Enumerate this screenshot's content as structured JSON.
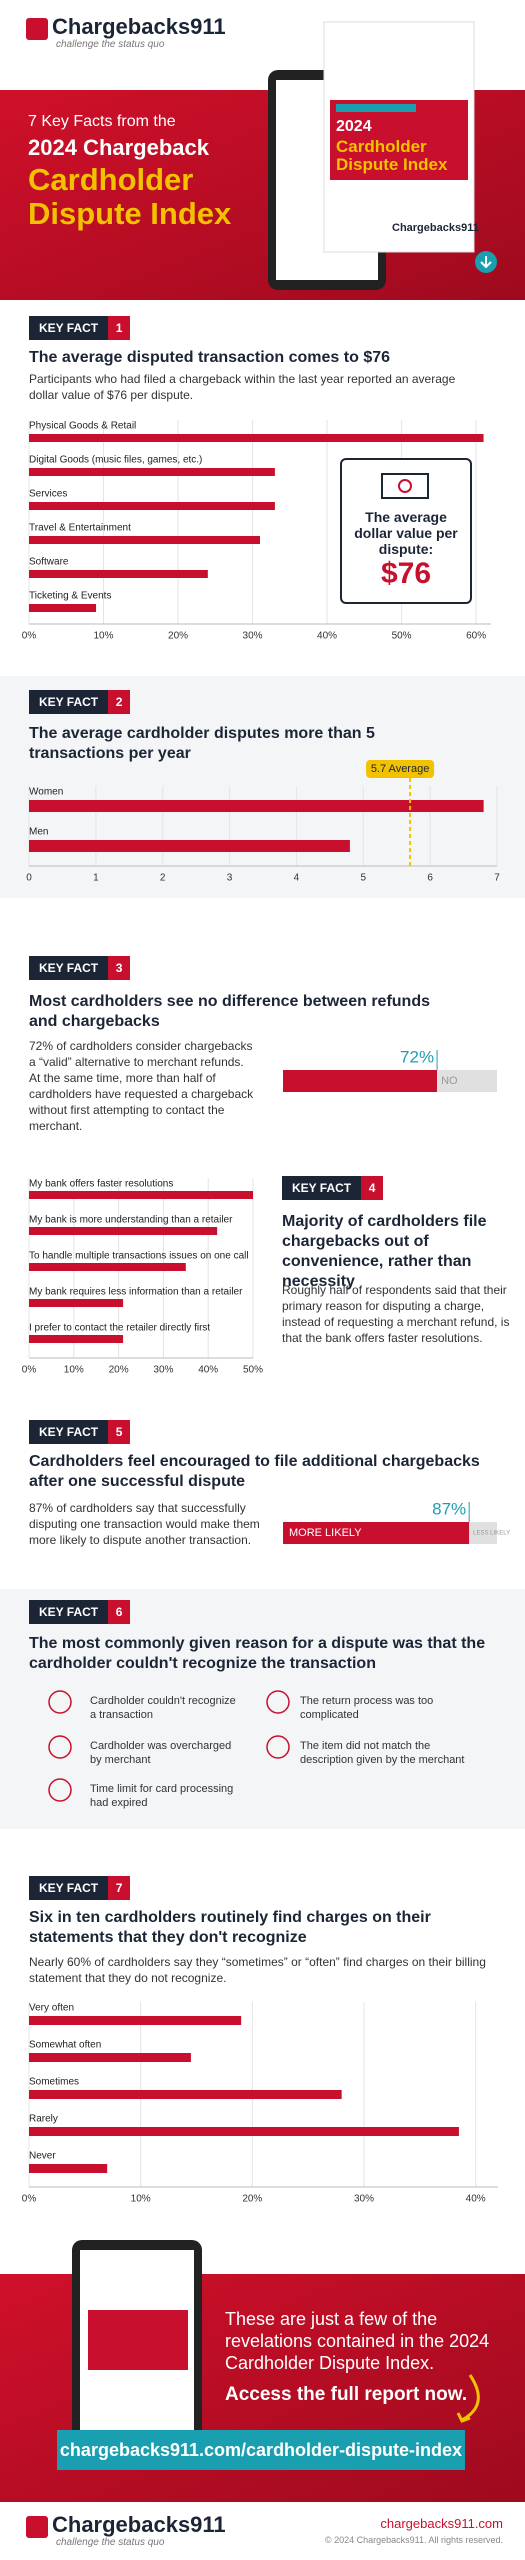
{
  "header": {
    "logo": "Chargebacks911",
    "tagline": "challenge the status quo"
  },
  "hero": {
    "line1": "7 Key Facts from the",
    "line2": "2024 Chargeback",
    "title": "Cardholder Dispute Index",
    "book_year": "2024",
    "book_title": "Cardholder Dispute Index"
  },
  "sections": [
    {
      "tag": "KEY FACT",
      "number": 1,
      "title": "The average disputed transaction comes to $76",
      "text": "Participants who had filed a chargeback within the last year reported an average dollar value of $76 per dispute."
    },
    {
      "tag": "KEY FACT",
      "number": 2,
      "title": "The average cardholder disputes more than 5 transactions per year"
    },
    {
      "tag": "KEY FACT",
      "number": 3,
      "title": "Most cardholders see no difference between refunds and chargebacks",
      "text": "72% of cardholders consider chargebacks a “valid” alternative to merchant refunds. At the same time, more than half of cardholders have requested a chargeback without first attempting to contact the merchant."
    },
    {
      "tag": "KEY FACT",
      "number": 4,
      "title": "Majority of cardholders file chargebacks out of convenience, rather than necessity",
      "text": "Roughly half of respondents said that their primary reason for disputing a charge, instead of requesting a merchant refund, is that the bank offers faster resolutions."
    },
    {
      "tag": "KEY FACT",
      "number": 5,
      "title": "Cardholders feel encouraged to file additional chargebacks after one successful dispute",
      "text": "87% of cardholders say that successfully disputing one transaction would make them more likely to dispute another transaction."
    },
    {
      "tag": "KEY FACT",
      "number": 6,
      "title": "The most commonly given reason for a dispute was that the cardholder couldn't recognize the transaction"
    },
    {
      "tag": "KEY FACT",
      "number": 7,
      "title": "Six in ten cardholders routinely find charges on their statements that they don't recognize",
      "text": "Nearly 60% of cardholders say they “sometimes” or “often” find charges on their billing statement that they do not recognize."
    }
  ],
  "card": {
    "label": "The average dollar value per dispute:",
    "amount": "$76"
  },
  "reasons": [
    "Cardholder couldn't recognize a transaction",
    "The return process was too complicated",
    "Cardholder was overcharged by merchant",
    "The item did not match the description given by the merchant",
    "Time limit for card processing had expired"
  ],
  "footer": {
    "text": "These are just a few of the revelations contained in the 2024 Cardholder Dispute Index.",
    "cta": "Access the full report now.",
    "url": "chargebacks911.com/cardholder-dispute-index",
    "site": "chargebacks911.com",
    "copyright": "© 2024 Chargebacks911. All rights reserved."
  },
  "chart_data": [
    {
      "type": "bar",
      "orientation": "horizontal",
      "color": "#c8102e",
      "grid": true,
      "categories": [
        "Physical Goods & Retail",
        "Digital Goods (music files, games, etc.)",
        "Services",
        "Travel & Entertainment",
        "Software",
        "Ticketing & Events"
      ],
      "values": [
        61,
        33,
        33,
        31,
        24,
        9
      ],
      "xlim": [
        0,
        62
      ],
      "xticks": [
        {
          "value": 0,
          "label": "0%"
        },
        {
          "value": 10,
          "label": "10%"
        },
        {
          "value": 20,
          "label": "20%"
        },
        {
          "value": 30,
          "label": "30%"
        },
        {
          "value": 40,
          "label": "40%"
        },
        {
          "value": 50,
          "label": "50%"
        },
        {
          "value": 60,
          "label": "60%"
        }
      ]
    },
    {
      "type": "bar",
      "orientation": "horizontal",
      "color": "#c8102e",
      "grid": true,
      "categories": [
        "Women",
        "Men"
      ],
      "values": [
        6.8,
        4.8
      ],
      "xlim": [
        0,
        7
      ],
      "xticks": [
        0,
        1,
        2,
        3,
        4,
        5,
        6,
        7
      ],
      "annotation": {
        "value": 5.7,
        "label": "5.7 Average"
      }
    },
    {
      "type": "progress",
      "color": "#c8102e",
      "value": 72,
      "value_label": "72%",
      "rest_label": "NO",
      "xlim": [
        0,
        100
      ]
    },
    {
      "type": "bar",
      "orientation": "horizontal",
      "color": "#c8102e",
      "grid": true,
      "categories": [
        "My bank offers faster resolutions",
        "My bank is more understanding than a retailer",
        "To handle multiple transactions issues on one call",
        "My bank requires less information than a retailer",
        "I prefer to contact the retailer directly first"
      ],
      "values": [
        50,
        42,
        35,
        21,
        21
      ],
      "xlim": [
        0,
        50
      ],
      "xticks": [
        {
          "value": 0,
          "label": "0%"
        },
        {
          "value": 10,
          "label": "10%"
        },
        {
          "value": 20,
          "label": "20%"
        },
        {
          "value": 30,
          "label": "30%"
        },
        {
          "value": 40,
          "label": "40%"
        },
        {
          "value": 50,
          "label": "50%"
        }
      ]
    },
    {
      "type": "progress",
      "color": "#c8102e",
      "value": 87,
      "value_label": "87%",
      "inner_label": "MORE LIKELY",
      "rest_label": "LESS LIKELY",
      "xlim": [
        0,
        100
      ]
    },
    {
      "type": "bar",
      "orientation": "horizontal",
      "color": "#c8102e",
      "grid": true,
      "categories": [
        "Very often",
        "Somewhat often",
        "Sometimes",
        "Rarely",
        "Never"
      ],
      "values": [
        19,
        14.5,
        28,
        38.5,
        7
      ],
      "xlim": [
        0,
        42
      ],
      "xticks": [
        {
          "value": 0,
          "label": "0%"
        },
        {
          "value": 10,
          "label": "10%"
        },
        {
          "value": 20,
          "label": "20%"
        },
        {
          "value": 30,
          "label": "30%"
        },
        {
          "value": 40,
          "label": "40%"
        }
      ]
    }
  ]
}
